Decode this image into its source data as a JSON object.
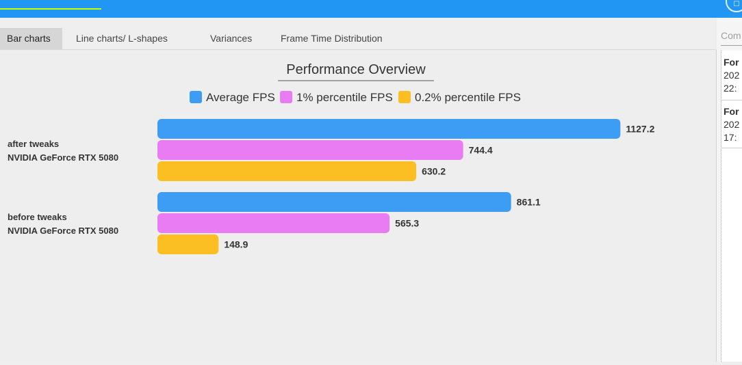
{
  "tabs": [
    "Bar charts",
    "Line charts/ L-shapes",
    "Variances",
    "Frame Time Distribution"
  ],
  "active_tab": 0,
  "side_panel": {
    "title": "Com",
    "items": [
      {
        "title": "For",
        "line1": "202",
        "line2": "22:"
      },
      {
        "title": "For",
        "line1": "202",
        "line2": "17:"
      }
    ]
  },
  "colors": {
    "topbar": "#2196f3",
    "accent": "#c6ff00",
    "average": "#3d9df5",
    "p1": "#e97cf2",
    "p02": "#fbbf24"
  },
  "chart_data": {
    "type": "bar",
    "orientation": "horizontal",
    "title": "Performance Overview",
    "legend_position": "top-center",
    "grid": false,
    "xlim": [
      0,
      1320
    ],
    "categories": [
      [
        "after tweaks",
        "NVIDIA GeForce RTX 5080"
      ],
      [
        "before tweaks",
        "NVIDIA GeForce RTX 5080"
      ]
    ],
    "series": [
      {
        "name": "Average FPS",
        "color": "#3d9df5",
        "values": [
          1127.2,
          861.1
        ]
      },
      {
        "name": "1% percentile FPS",
        "color": "#e97cf2",
        "values": [
          744.4,
          565.3
        ]
      },
      {
        "name": "0.2% percentile FPS",
        "color": "#fbbf24",
        "values": [
          630.2,
          148.9
        ]
      }
    ]
  }
}
